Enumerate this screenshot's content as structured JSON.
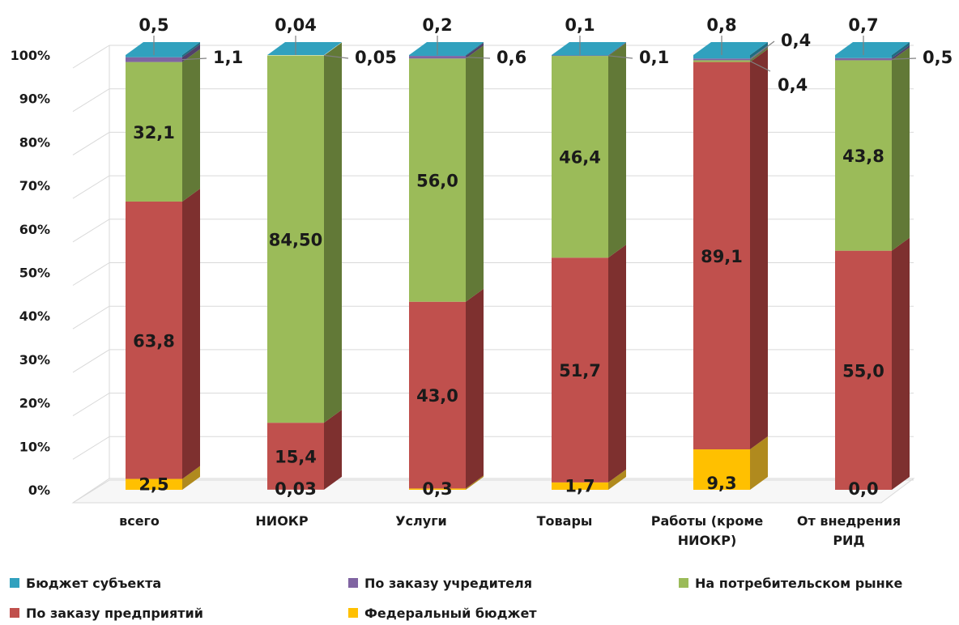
{
  "chart_data": {
    "type": "bar",
    "stacked": "percent",
    "three_d": true,
    "y_ticks": [
      "0%",
      "10%",
      "20%",
      "30%",
      "40%",
      "50%",
      "60%",
      "70%",
      "80%",
      "90%",
      "100%"
    ],
    "ylim": [
      0,
      100
    ],
    "grid": true,
    "legend_position": "bottom",
    "categories": [
      [
        "всего"
      ],
      [
        "НИОКР"
      ],
      [
        "Услуги"
      ],
      [
        "Товары"
      ],
      [
        "Работы (кроме",
        "НИОКР)"
      ],
      [
        "От внедрения",
        "РИД"
      ]
    ],
    "series": [
      {
        "name": "Федеральный бюджет",
        "color": "#FFC000",
        "side": "#B08A1E",
        "values": [
          2.5,
          0.03,
          0.3,
          1.7,
          9.3,
          0.0
        ],
        "labels": [
          "2,5",
          "0,03",
          "0,3",
          "1,7",
          "9,3",
          "0,0"
        ]
      },
      {
        "name": "По заказу предприятий",
        "color": "#C0504D",
        "side": "#7E302F",
        "values": [
          63.8,
          15.4,
          43.0,
          51.7,
          89.1,
          55.0
        ],
        "labels": [
          "63,8",
          "15,4",
          "43,0",
          "51,7",
          "89,1",
          "55,0"
        ]
      },
      {
        "name": "На потребительском рынке",
        "color": "#9BBB59",
        "side": "#627937",
        "values": [
          32.1,
          84.5,
          56.0,
          46.4,
          0.4,
          43.8
        ],
        "labels": [
          "32,1",
          "84,50",
          "56,0",
          "46,4",
          "0,4",
          "43,8"
        ]
      },
      {
        "name": "По заказу учредителя",
        "color": "#8064A2",
        "side": "#51406A",
        "values": [
          1.1,
          0.05,
          0.6,
          0.1,
          0.4,
          0.5
        ],
        "labels": [
          "1,1",
          "0,05",
          "0,6",
          "0,1",
          "0,4",
          "0,5"
        ]
      },
      {
        "name": "Бюджет субъекта",
        "color": "#31A1BE",
        "side": "#1F6C81",
        "values": [
          0.5,
          0.04,
          0.2,
          0.1,
          0.8,
          0.7
        ],
        "labels": [
          "0,5",
          "0,04",
          "0,2",
          "0,1",
          "0,8",
          "0,7"
        ]
      }
    ],
    "legend_order": [
      "Бюджет субъекта",
      "По заказу учредителя",
      "На потребительском рынке",
      "По заказу предприятий",
      "Федеральный бюджет"
    ]
  }
}
